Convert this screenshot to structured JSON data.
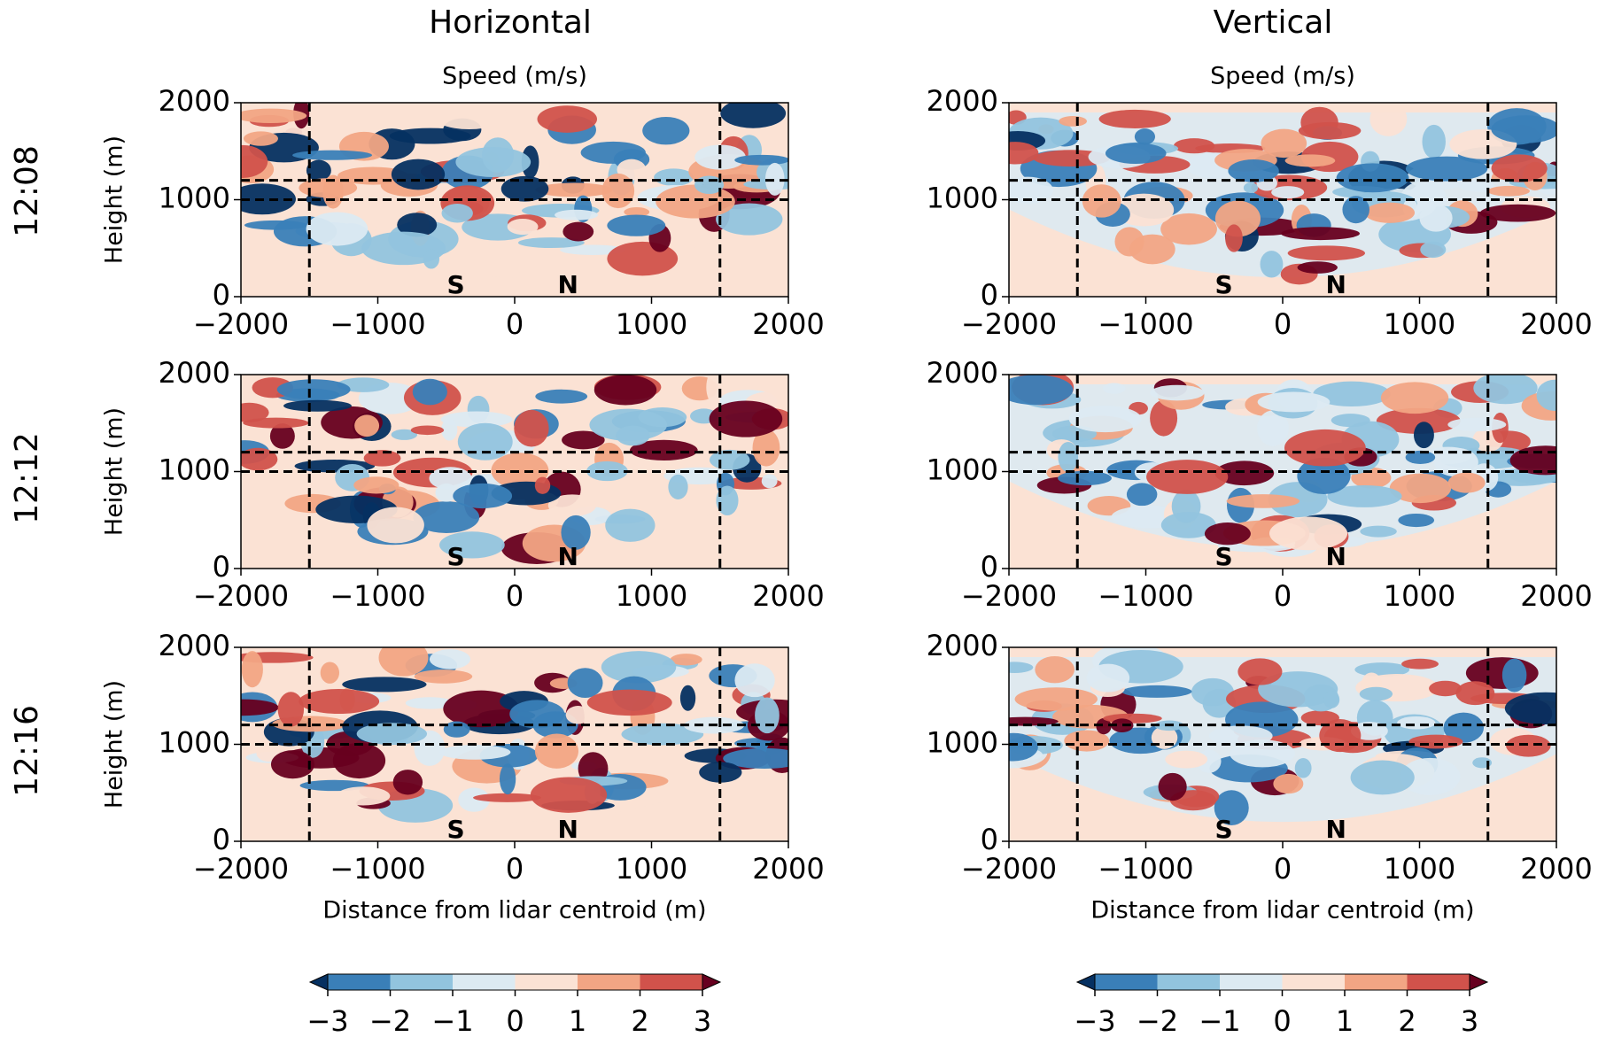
{
  "columns": [
    "Horizontal",
    "Vertical"
  ],
  "rows": [
    "12:08",
    "12:12",
    "12:16"
  ],
  "chart_data": [
    {
      "type": "contour",
      "subtitle": "Speed (m/s)",
      "ylabel": "Height (m)",
      "xlim": [
        -2000,
        2000
      ],
      "xticks": [
        {
          "value": -2000,
          "label": "−2000"
        },
        {
          "value": -1000,
          "label": "−1000"
        },
        0,
        1000,
        2000
      ],
      "ylim": [
        0,
        2000
      ],
      "yticks": [
        0,
        1000,
        2000
      ],
      "vlines": [
        -1500,
        1500
      ],
      "hlines": [
        1000,
        1200
      ],
      "annotations": [
        {
          "text": "S",
          "x": -430
        },
        {
          "text": "N",
          "x": 390
        }
      ]
    },
    {
      "type": "contour",
      "subtitle": "Speed (m/s)",
      "xlim": [
        -2000,
        2000
      ],
      "xticks": [
        {
          "value": -2000,
          "label": "−2000"
        },
        {
          "value": -1000,
          "label": "−1000"
        },
        0,
        1000,
        2000
      ],
      "ylim": [
        0,
        2000
      ],
      "yticks": [
        0,
        1000,
        2000
      ],
      "vlines": [
        -1500,
        1500
      ],
      "hlines": [
        1000,
        1200
      ],
      "annotations": [
        {
          "text": "S",
          "x": -430
        },
        {
          "text": "N",
          "x": 390
        }
      ]
    },
    {
      "type": "contour",
      "ylabel": "Height (m)",
      "xlim": [
        -2000,
        2000
      ],
      "xticks": [
        {
          "value": -2000,
          "label": "−2000"
        },
        {
          "value": -1000,
          "label": "−1000"
        },
        0,
        1000,
        2000
      ],
      "ylim": [
        0,
        2000
      ],
      "yticks": [
        0,
        1000,
        2000
      ],
      "vlines": [
        -1500,
        1500
      ],
      "hlines": [
        1000,
        1200
      ],
      "annotations": [
        {
          "text": "S",
          "x": -430
        },
        {
          "text": "N",
          "x": 390
        }
      ]
    },
    {
      "type": "contour",
      "xlim": [
        -2000,
        2000
      ],
      "xticks": [
        {
          "value": -2000,
          "label": "−2000"
        },
        {
          "value": -1000,
          "label": "−1000"
        },
        0,
        1000,
        2000
      ],
      "ylim": [
        0,
        2000
      ],
      "yticks": [
        0,
        1000,
        2000
      ],
      "vlines": [
        -1500,
        1500
      ],
      "hlines": [
        1000,
        1200
      ],
      "annotations": [
        {
          "text": "S",
          "x": -430
        },
        {
          "text": "N",
          "x": 390
        }
      ]
    },
    {
      "type": "contour",
      "ylabel": "Height (m)",
      "xlabel": "Distance from lidar centroid (m)",
      "xlim": [
        -2000,
        2000
      ],
      "xticks": [
        {
          "value": -2000,
          "label": "−2000"
        },
        {
          "value": -1000,
          "label": "−1000"
        },
        0,
        1000,
        2000
      ],
      "ylim": [
        0,
        2000
      ],
      "yticks": [
        0,
        1000,
        2000
      ],
      "vlines": [
        -1500,
        1500
      ],
      "hlines": [
        1000,
        1200
      ],
      "annotations": [
        {
          "text": "S",
          "x": -430
        },
        {
          "text": "N",
          "x": 390
        }
      ]
    },
    {
      "type": "contour",
      "xlabel": "Distance from lidar centroid (m)",
      "xlim": [
        -2000,
        2000
      ],
      "xticks": [
        {
          "value": -2000,
          "label": "−2000"
        },
        {
          "value": -1000,
          "label": "−1000"
        },
        0,
        1000,
        2000
      ],
      "ylim": [
        0,
        2000
      ],
      "yticks": [
        0,
        1000,
        2000
      ],
      "vlines": [
        -1500,
        1500
      ],
      "hlines": [
        1000,
        1200
      ],
      "annotations": [
        {
          "text": "S",
          "x": -430
        },
        {
          "text": "N",
          "x": 390
        }
      ]
    }
  ],
  "colorbars": [
    {
      "ticks": [
        {
          "value": -3,
          "label": "−3"
        },
        {
          "value": -2,
          "label": "−2"
        },
        {
          "value": -1,
          "label": "−1"
        },
        0,
        1,
        2,
        3
      ],
      "colors": [
        "#3a7fb8",
        "#92c4de",
        "#dceaf2",
        "#fbe2d4",
        "#f2a584",
        "#d1524b"
      ],
      "under": "#053061",
      "over": "#67001f"
    },
    {
      "ticks": [
        {
          "value": -3,
          "label": "−3"
        },
        {
          "value": -2,
          "label": "−2"
        },
        {
          "value": -1,
          "label": "−1"
        },
        0,
        1,
        2,
        3
      ],
      "colors": [
        "#3a7fb8",
        "#92c4de",
        "#dceaf2",
        "#fbe2d4",
        "#f2a584",
        "#d1524b"
      ],
      "under": "#053061",
      "over": "#67001f"
    }
  ]
}
